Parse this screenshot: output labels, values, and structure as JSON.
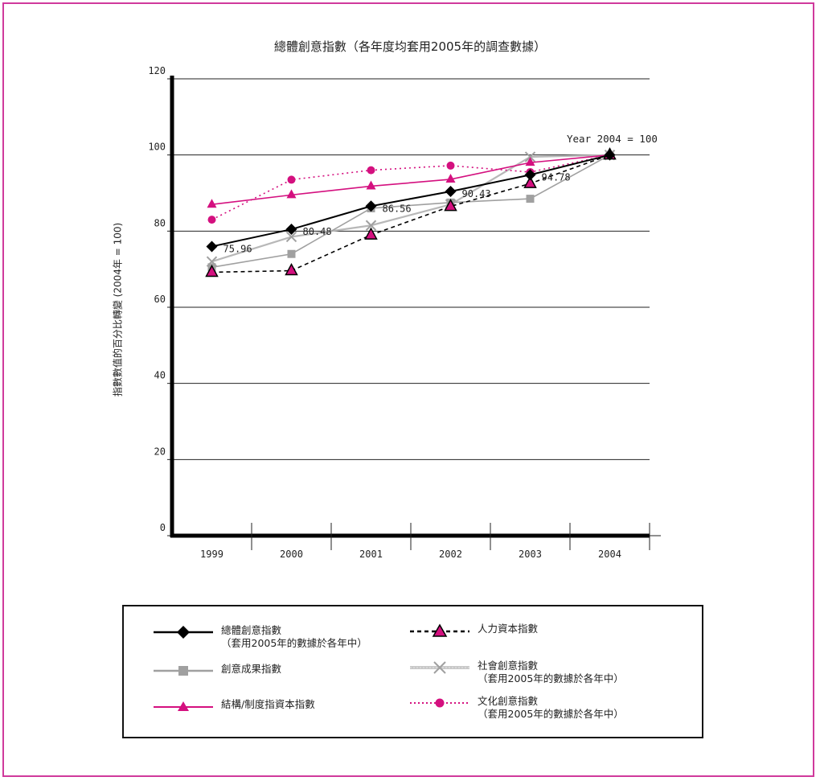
{
  "chart_data": {
    "type": "line",
    "title": "總體創意指數（各年度均套用2005年的調查數據）",
    "ylabel": "指數數值的百分比轉變 (2004年 = 100)",
    "xlabel": "",
    "categories": [
      "1999",
      "2000",
      "2001",
      "2002",
      "2003",
      "2004"
    ],
    "ylim": [
      0,
      120
    ],
    "yticks": [
      "0",
      "20",
      "40",
      "60",
      "80",
      "100",
      "120"
    ],
    "grid": true,
    "legend_position": "bottom",
    "annotation": "Year 2004 = 100",
    "series": [
      {
        "key": "total",
        "values": [
          75.96,
          80.48,
          86.56,
          90.43,
          94.78,
          100
        ],
        "labels": [
          "75.96",
          "80.48",
          "86.56",
          "90.43",
          "94.78",
          ""
        ],
        "color": "#000000",
        "dash": "",
        "marker": "diamond"
      },
      {
        "key": "outcome",
        "values": [
          70.5,
          74.0,
          86.0,
          87.5,
          88.5,
          100
        ],
        "color": "#a0a0a0",
        "dash": "",
        "marker": "square"
      },
      {
        "key": "structural",
        "values": [
          87.0,
          89.5,
          91.8,
          93.6,
          98.0,
          100
        ],
        "color": "#d4107f",
        "dash": "",
        "marker": "triangle"
      },
      {
        "key": "human",
        "values": [
          69.2,
          69.6,
          79.0,
          86.5,
          92.5,
          100
        ],
        "color": "#000000",
        "dash": "5,4",
        "marker": "triangle-outline"
      },
      {
        "key": "social",
        "values": [
          72.0,
          78.5,
          81.5,
          87.0,
          99.5,
          100
        ],
        "color": "#a0a0a0",
        "dash": "",
        "marker": "cross"
      },
      {
        "key": "cultural",
        "values": [
          83.0,
          93.5,
          96.0,
          97.2,
          95.5,
          100
        ],
        "color": "#d4107f",
        "dash": "2,4",
        "marker": "circle"
      }
    ]
  },
  "legend": {
    "total": {
      "line1": "總體創意指數",
      "line2": "（套用2005年的數據於各年中）"
    },
    "outcome": {
      "line1": "創意成果指數"
    },
    "structural": {
      "line1": "結構/制度指資本指數"
    },
    "human": {
      "line1": "人力資本指數"
    },
    "social": {
      "line1": "社會創意指數",
      "line2": "（套用2005年的數據於各年中）"
    },
    "cultural": {
      "line1": "文化創意指數",
      "line2": "（套用2005年的數據於各年中）"
    }
  }
}
